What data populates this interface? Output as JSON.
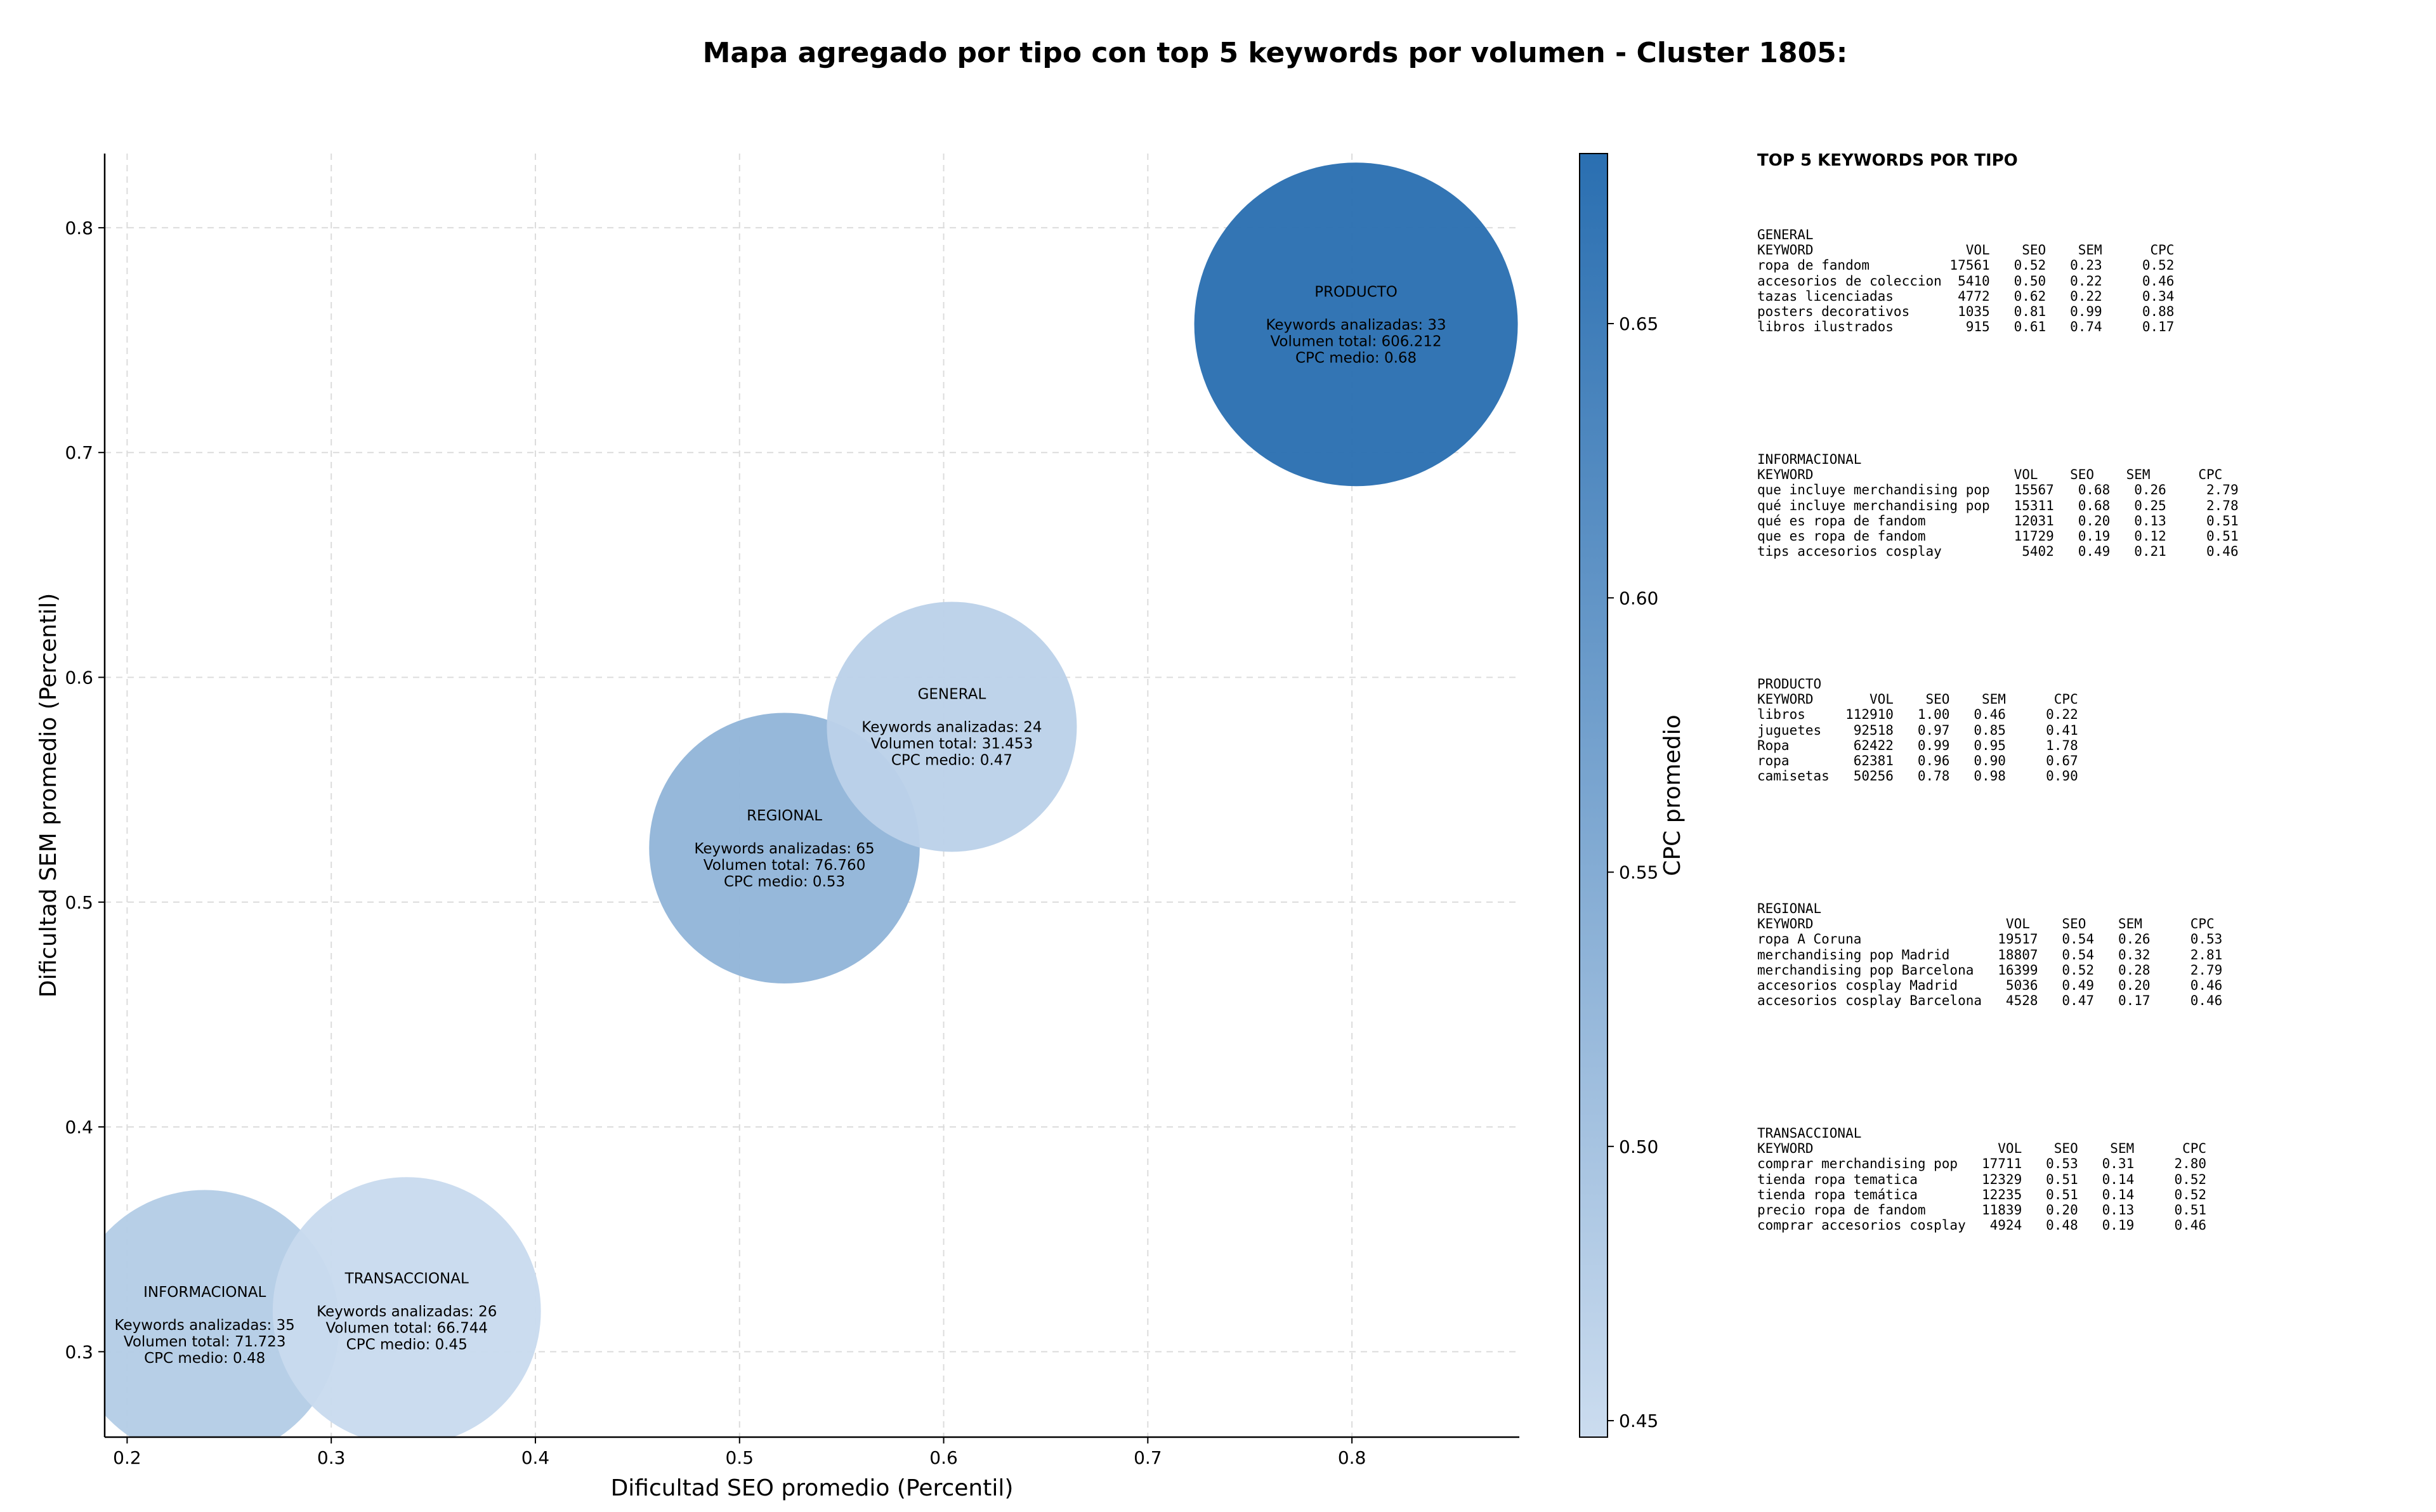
{
  "chart_data": {
    "type": "scatter",
    "title": "Mapa agregado por tipo con top 5 keywords por volumen - Cluster 1805:",
    "xlabel": "Dificultad SEO promedio (Percentil)",
    "ylabel": "Dificultad SEM promedio (Percentil)",
    "xlim": [
      0.189,
      0.882
    ],
    "ylim": [
      0.262,
      0.833
    ],
    "xticks": [
      "0.2",
      "0.3",
      "0.4",
      "0.5",
      "0.6",
      "0.7",
      "0.8"
    ],
    "yticks": [
      "0.3",
      "0.4",
      "0.5",
      "0.6",
      "0.7",
      "0.8"
    ],
    "grid": true,
    "colorbar": {
      "label": "CPC promedio",
      "min": 0.447,
      "max": 0.681,
      "ticks": [
        "0.45",
        "0.50",
        "0.55",
        "0.60",
        "0.65"
      ],
      "color_low": "#cbdcef",
      "color_high": "#2a6fb1"
    },
    "points": [
      {
        "name": "INFORMACIONAL",
        "x": 0.238,
        "y": 0.312,
        "keywords": 35,
        "volume": 71.723,
        "cpc": 0.48,
        "lines": [
          "INFORMACIONAL",
          "",
          "Keywords analizadas: 35",
          "Volumen total: 71.723",
          "CPC medio: 0.48"
        ]
      },
      {
        "name": "TRANSACCIONAL",
        "x": 0.337,
        "y": 0.318,
        "keywords": 26,
        "volume": 66.744,
        "cpc": 0.45,
        "lines": [
          "TRANSACCIONAL",
          "",
          "Keywords analizadas: 26",
          "Volumen total: 66.744",
          "CPC medio: 0.45"
        ]
      },
      {
        "name": "REGIONAL",
        "x": 0.522,
        "y": 0.524,
        "keywords": 65,
        "volume": 76.76,
        "cpc": 0.53,
        "lines": [
          "REGIONAL",
          "",
          "Keywords analizadas: 65",
          "Volumen total: 76.760",
          "CPC medio: 0.53"
        ]
      },
      {
        "name": "GENERAL",
        "x": 0.604,
        "y": 0.578,
        "keywords": 24,
        "volume": 31.453,
        "cpc": 0.47,
        "lines": [
          "GENERAL",
          "",
          "Keywords analizadas: 24",
          "Volumen total: 31.453",
          "CPC medio: 0.47"
        ]
      },
      {
        "name": "PRODUCTO",
        "x": 0.802,
        "y": 0.757,
        "keywords": 33,
        "volume": 606.212,
        "cpc": 0.68,
        "lines": [
          "PRODUCTO",
          "",
          "Keywords analizadas: 33",
          "Volumen total: 606.212",
          "CPC medio: 0.68"
        ]
      }
    ]
  },
  "keyword_panel": {
    "heading": "TOP 5 KEYWORDS POR TIPO",
    "blocks": [
      {
        "name": "general",
        "lines": [
          "GENERAL",
          "KEYWORD                   VOL    SEO    SEM      CPC",
          "ropa de fandom          17561   0.52   0.23     0.52",
          "accesorios de coleccion  5410   0.50   0.22     0.46",
          "tazas licenciadas        4772   0.62   0.22     0.34",
          "posters decorativos      1035   0.81   0.99     0.88",
          "libros ilustrados         915   0.61   0.74     0.17"
        ]
      },
      {
        "name": "informacional",
        "lines": [
          "INFORMACIONAL",
          "KEYWORD                         VOL    SEO    SEM      CPC",
          "que incluye merchandising pop   15567   0.68   0.26     2.79",
          "qué incluye merchandising pop   15311   0.68   0.25     2.78",
          "qué es ropa de fandom           12031   0.20   0.13     0.51",
          "que es ropa de fandom           11729   0.19   0.12     0.51",
          "tips accesorios cosplay          5402   0.49   0.21     0.46"
        ]
      },
      {
        "name": "producto",
        "lines": [
          "PRODUCTO",
          "KEYWORD       VOL    SEO    SEM      CPC",
          "libros     112910   1.00   0.46     0.22",
          "juguetes    92518   0.97   0.85     0.41",
          "Ropa        62422   0.99   0.95     1.78",
          "ropa        62381   0.96   0.90     0.67",
          "camisetas   50256   0.78   0.98     0.90"
        ]
      },
      {
        "name": "regional",
        "lines": [
          "REGIONAL",
          "KEYWORD                        VOL    SEO    SEM      CPC",
          "ropa A Coruna                 19517   0.54   0.26     0.53",
          "merchandising pop Madrid      18807   0.54   0.32     2.81",
          "merchandising pop Barcelona   16399   0.52   0.28     2.79",
          "accesorios cosplay Madrid      5036   0.49   0.20     0.46",
          "accesorios cosplay Barcelona   4528   0.47   0.17     0.46"
        ]
      },
      {
        "name": "transaccional",
        "lines": [
          "TRANSACCIONAL",
          "KEYWORD                       VOL    SEO    SEM      CPC",
          "comprar merchandising pop   17711   0.53   0.31     2.80",
          "tienda ropa tematica        12329   0.51   0.14     0.52",
          "tienda ropa temática        12235   0.51   0.14     0.52",
          "precio ropa de fandom       11839   0.20   0.13     0.51",
          "comprar accesorios cosplay   4924   0.48   0.19     0.46"
        ]
      }
    ]
  }
}
